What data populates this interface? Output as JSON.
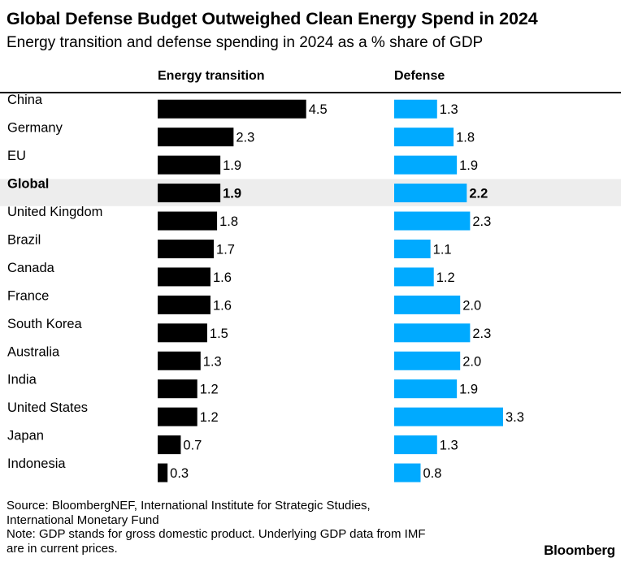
{
  "header": {
    "title": "Global Defense Budget Outweighed Clean Energy Spend in 2024",
    "subtitle": "Energy transition and defense spending in 2024 as a % share of GDP"
  },
  "columns": {
    "energy": "Energy transition",
    "defense": "Defense"
  },
  "colors": {
    "energy_bar": "#000000",
    "defense_bar": "#00aaff",
    "highlight_row": "#ededed"
  },
  "chart_data": {
    "type": "bar",
    "orientation": "horizontal",
    "categories": [
      "China",
      "Germany",
      "EU",
      "Global",
      "United Kingdom",
      "Brazil",
      "Canada",
      "France",
      "South Korea",
      "Australia",
      "India",
      "United States",
      "Japan",
      "Indonesia"
    ],
    "highlighted_category": "Global",
    "series": [
      {
        "name": "Energy transition",
        "values": [
          4.5,
          2.3,
          1.9,
          1.9,
          1.8,
          1.7,
          1.6,
          1.6,
          1.5,
          1.3,
          1.2,
          1.2,
          0.7,
          0.3
        ],
        "labels": [
          "4.5",
          "2.3",
          "1.9",
          "1.9",
          "1.8",
          "1.7",
          "1.6",
          "1.6",
          "1.5",
          "1.3",
          "1.2",
          "1.2",
          "0.7",
          "0.3"
        ]
      },
      {
        "name": "Defense",
        "values": [
          1.3,
          1.8,
          1.9,
          2.2,
          2.3,
          1.1,
          1.2,
          2.0,
          2.3,
          2.0,
          1.9,
          3.3,
          1.3,
          0.8
        ],
        "labels": [
          "1.3",
          "1.8",
          "1.9",
          "2.2",
          "2.3",
          "1.1",
          "1.2",
          "2.0",
          "2.3",
          "2.0",
          "1.9",
          "3.3",
          "1.3",
          "0.8"
        ]
      }
    ],
    "grid": false,
    "legend": "none"
  },
  "footer": {
    "source_line1": "Source: BloombergNEF, International Institute for Strategic Studies,",
    "source_line2": "International Monetary Fund",
    "note_line1": "Note: GDP stands for gross domestic product. Underlying GDP data from IMF",
    "note_line2": "are in current prices.",
    "brand": "Bloomberg"
  }
}
